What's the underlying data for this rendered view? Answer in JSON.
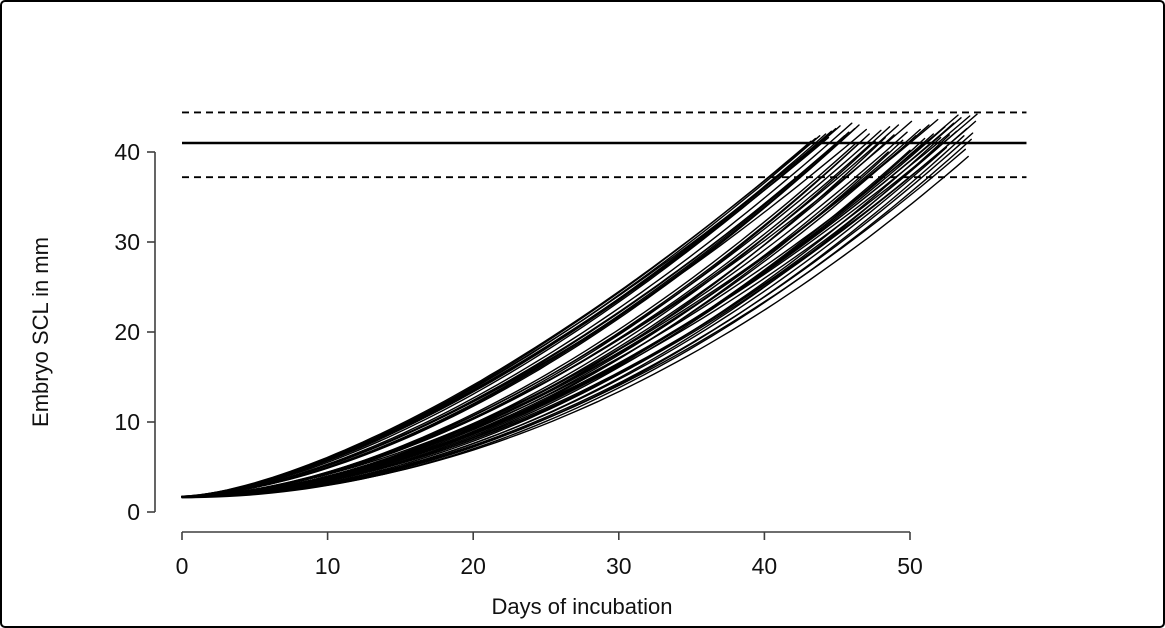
{
  "chart_data": {
    "type": "line",
    "title": "",
    "xlabel": "Days of incubation",
    "ylabel": "Embryo SCL in mm",
    "x_ticks": [
      0,
      10,
      20,
      30,
      40,
      50
    ],
    "y_ticks": [
      0,
      10,
      20,
      30,
      40
    ],
    "xlim": [
      0,
      58
    ],
    "ylim": [
      0,
      46
    ],
    "grid": false,
    "legend": "none",
    "colors": {
      "curve": "#000000",
      "reference_line": "#000000",
      "axis": "#3f3f3f",
      "text": "#111111",
      "background": "#ffffff"
    },
    "reference_lines": [
      {
        "name": "upper-dashed-limit",
        "value": 44.4,
        "style": "dashed",
        "x_start_day": 0,
        "x_end_day": 58
      },
      {
        "name": "mean-hatchling-scl",
        "value": 41.0,
        "style": "solid",
        "x_start_day": 0,
        "x_end_day": 58
      },
      {
        "name": "lower-dashed-limit",
        "value": 37.2,
        "style": "dashed",
        "x_start_day": 0,
        "x_end_day": 58
      }
    ],
    "n_curves": 53,
    "curve_model": "scl(t) = scl_start + (scl_end - scl_start) * (t / t_end)^shape, for t in [0, t_end] days",
    "curve_params_key": [
      "t_end_days",
      "scl_end_mm",
      "shape_exponent",
      "scl_start_mm"
    ],
    "curves": [
      [
        43.2,
        41.2,
        1.52,
        1.7
      ],
      [
        43.5,
        41.5,
        1.5,
        1.7
      ],
      [
        43.8,
        41.8,
        1.54,
        1.75
      ],
      [
        44.0,
        41.4,
        1.5,
        1.65
      ],
      [
        44.2,
        42.0,
        1.56,
        1.7
      ],
      [
        44.4,
        41.6,
        1.52,
        1.7
      ],
      [
        44.6,
        42.3,
        1.55,
        1.75
      ],
      [
        44.9,
        42.6,
        1.58,
        1.7
      ],
      [
        45.2,
        42.9,
        1.55,
        1.7
      ],
      [
        46.0,
        43.2,
        1.6,
        1.7
      ],
      [
        47.0,
        42.5,
        1.58,
        1.65
      ],
      [
        45.0,
        41.0,
        1.6,
        1.65
      ],
      [
        45.5,
        41.8,
        1.62,
        1.7
      ],
      [
        45.8,
        42.2,
        1.65,
        1.7
      ],
      [
        46.5,
        43.0,
        1.68,
        1.75
      ],
      [
        46.2,
        42.6,
        1.66,
        1.7
      ],
      [
        46.3,
        41.0,
        1.72,
        1.6
      ],
      [
        46.8,
        41.4,
        1.78,
        1.7
      ],
      [
        47.2,
        42.0,
        1.75,
        1.7
      ],
      [
        47.6,
        41.2,
        1.82,
        1.65
      ],
      [
        48.0,
        42.4,
        1.72,
        1.7
      ],
      [
        48.3,
        41.6,
        1.88,
        1.75
      ],
      [
        48.6,
        42.8,
        1.76,
        1.7
      ],
      [
        48.9,
        41.9,
        1.8,
        1.6
      ],
      [
        49.2,
        43.0,
        1.74,
        1.7
      ],
      [
        49.5,
        41.3,
        1.9,
        1.7
      ],
      [
        49.8,
        42.2,
        1.78,
        1.65
      ],
      [
        50.1,
        43.4,
        1.7,
        1.7
      ],
      [
        50.4,
        41.8,
        1.85,
        1.7
      ],
      [
        50.7,
        42.5,
        1.8,
        1.75
      ],
      [
        51.0,
        41.5,
        1.92,
        1.7
      ],
      [
        51.3,
        43.0,
        1.76,
        1.65
      ],
      [
        51.6,
        42.0,
        1.86,
        1.7
      ],
      [
        51.9,
        43.6,
        1.72,
        1.7
      ],
      [
        52.1,
        41.6,
        1.95,
        1.7
      ],
      [
        52.4,
        42.8,
        1.84,
        1.65
      ],
      [
        52.7,
        41.9,
        1.98,
        1.7
      ],
      [
        53.0,
        43.2,
        1.82,
        1.7
      ],
      [
        53.2,
        42.3,
        1.9,
        1.75
      ],
      [
        53.5,
        43.8,
        1.8,
        1.7
      ],
      [
        53.7,
        41.8,
        2.0,
        1.65
      ],
      [
        53.9,
        42.6,
        1.88,
        1.7
      ],
      [
        54.1,
        44.0,
        1.78,
        1.7
      ],
      [
        54.3,
        42.1,
        1.96,
        1.7
      ],
      [
        54.5,
        43.4,
        1.85,
        1.7
      ],
      [
        54.6,
        44.2,
        1.8,
        1.7
      ],
      [
        54.2,
        41.4,
        2.0,
        1.6
      ],
      [
        53.3,
        44.1,
        1.76,
        1.7
      ],
      [
        50.0,
        40.2,
        1.9,
        1.7
      ],
      [
        52.5,
        40.5,
        1.95,
        1.7
      ],
      [
        48.5,
        40.0,
        1.85,
        1.7
      ],
      [
        54.0,
        39.5,
        2.0,
        1.7
      ],
      [
        53.8,
        40.3,
        1.95,
        1.7
      ]
    ]
  }
}
